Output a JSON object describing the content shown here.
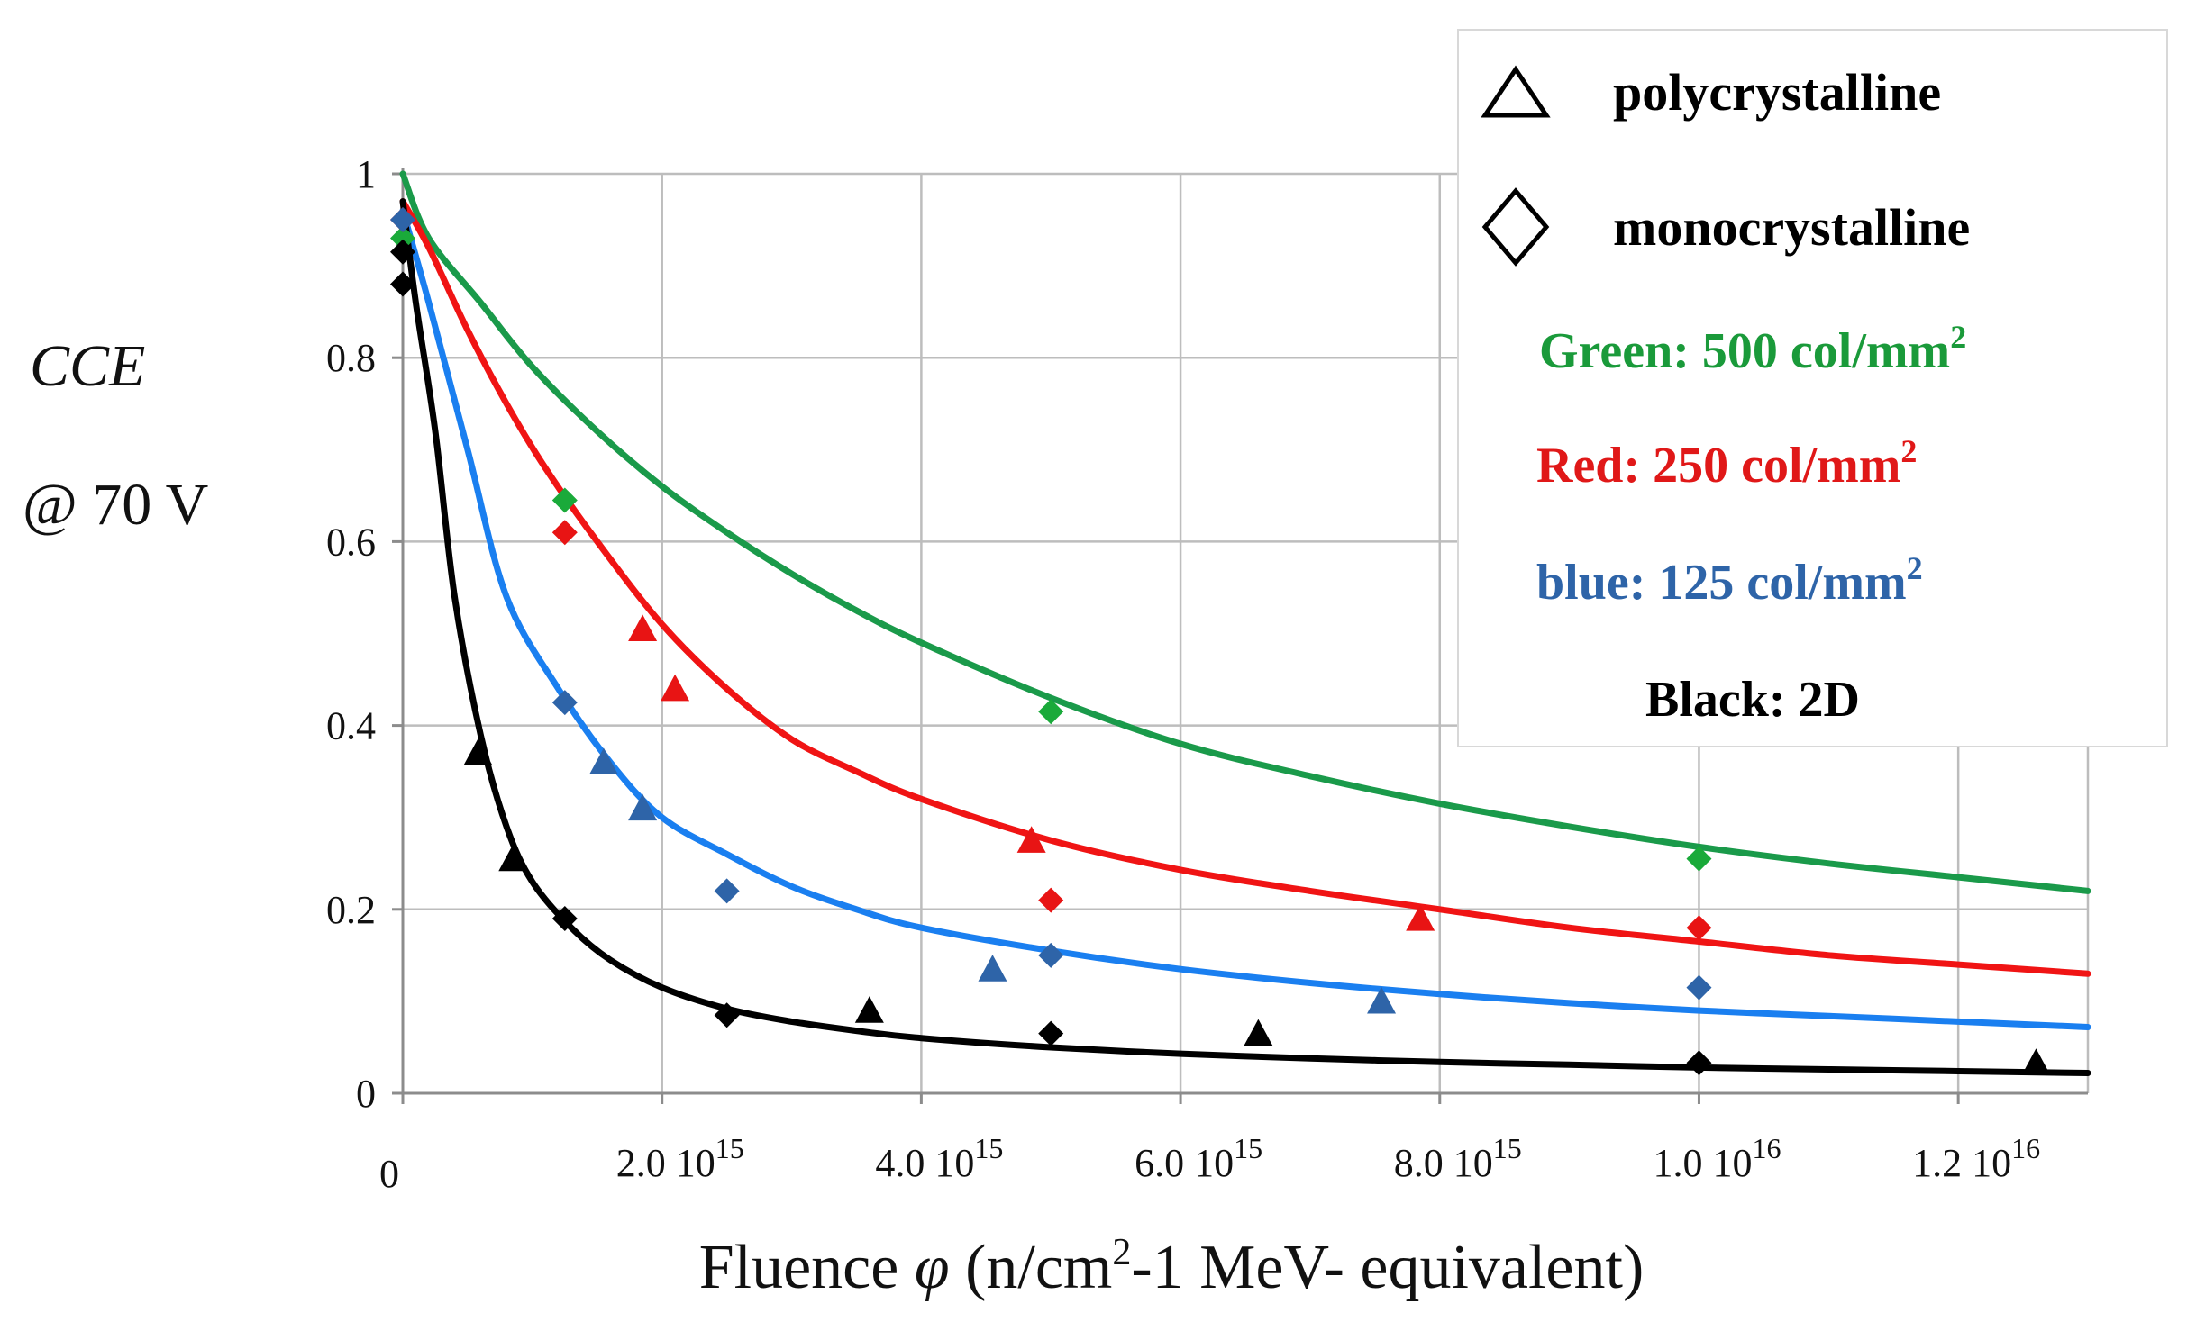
{
  "chart_data": {
    "type": "scatter",
    "xlabel_prefix": "Fluence ",
    "xlabel_symbol": "φ",
    "xlabel_suffix_parts": [
      "(n/cm",
      "2",
      "-1 MeV- equivalent)"
    ],
    "ylabel_main": "CCE",
    "ylabel_sub": "@ 70 V",
    "xlim": [
      0,
      1.3e+16
    ],
    "ylim": [
      0,
      1
    ],
    "grid": true,
    "x_ticks": [
      {
        "value": 0,
        "mantissa": "0",
        "exponent": ""
      },
      {
        "value": 2000000000000000.0,
        "mantissa": "2.0 10",
        "exponent": "15"
      },
      {
        "value": 4000000000000000.0,
        "mantissa": "4.0 10",
        "exponent": "15"
      },
      {
        "value": 6000000000000000.0,
        "mantissa": "6.0 10",
        "exponent": "15"
      },
      {
        "value": 8000000000000000.0,
        "mantissa": "8.0 10",
        "exponent": "15"
      },
      {
        "value": 1e+16,
        "mantissa": "1.0 10",
        "exponent": "16"
      },
      {
        "value": 1.2e+16,
        "mantissa": "1.2 10",
        "exponent": "16"
      }
    ],
    "y_ticks": [
      {
        "value": 0,
        "label": "0"
      },
      {
        "value": 0.2,
        "label": "0.2"
      },
      {
        "value": 0.4,
        "label": "0.4"
      },
      {
        "value": 0.6,
        "label": "0.6"
      },
      {
        "value": 0.8,
        "label": "0.8"
      },
      {
        "value": 1,
        "label": "1"
      }
    ],
    "legend": {
      "position": "top-right",
      "markers": [
        {
          "symbol": "triangle",
          "label": "polycrystalline"
        },
        {
          "symbol": "diamond",
          "label": "monocrystalline"
        }
      ],
      "color_notes": [
        {
          "text": "Green: 500 col/mm",
          "sup": "2",
          "color": "#1a9a3a"
        },
        {
          "text": "Red: 250 col/mm",
          "sup": "2",
          "color": "#e01818"
        },
        {
          "text": "blue: 125 col/mm",
          "sup": "2",
          "color": "#2e64a8"
        },
        {
          "text": "Black: 2D",
          "sup": "",
          "color": "#000000"
        }
      ]
    },
    "series": [
      {
        "name": "Green: 500 col/mm2",
        "line_color": "#1a9a4a",
        "marker_color": "#1aaa3a",
        "curve": [
          [
            0,
            1
          ],
          [
            200000000000000.0,
            0.93
          ],
          [
            600000000000000.0,
            0.86
          ],
          [
            1000000000000000.0,
            0.79
          ],
          [
            1500000000000000.0,
            0.72
          ],
          [
            2000000000000000.0,
            0.66
          ],
          [
            2500000000000000.0,
            0.61
          ],
          [
            3000000000000000.0,
            0.565
          ],
          [
            3500000000000000.0,
            0.525
          ],
          [
            4000000000000000.0,
            0.49
          ],
          [
            5000000000000000.0,
            0.43
          ],
          [
            6000000000000000.0,
            0.38
          ],
          [
            7000000000000000.0,
            0.345
          ],
          [
            8000000000000000.0,
            0.315
          ],
          [
            9000000000000000.0,
            0.29
          ],
          [
            1e+16,
            0.268
          ],
          [
            1.1e+16,
            0.25
          ],
          [
            1.2e+16,
            0.235
          ],
          [
            1.3e+16,
            0.22
          ]
        ],
        "monocrystalline": [
          [
            0,
            0.93
          ],
          [
            1250000000000000.0,
            0.645
          ],
          [
            5000000000000000.0,
            0.415
          ],
          [
            1e+16,
            0.255
          ]
        ],
        "polycrystalline": []
      },
      {
        "name": "Red: 250 col/mm2",
        "line_color": "#f01414",
        "marker_color": "#e81414",
        "curve": [
          [
            0,
            0.97
          ],
          [
            200000000000000.0,
            0.92
          ],
          [
            500000000000000.0,
            0.83
          ],
          [
            800000000000000.0,
            0.75
          ],
          [
            1100000000000000.0,
            0.68
          ],
          [
            1500000000000000.0,
            0.6
          ],
          [
            2000000000000000.0,
            0.51
          ],
          [
            2500000000000000.0,
            0.44
          ],
          [
            3000000000000000.0,
            0.385
          ],
          [
            3500000000000000.0,
            0.35
          ],
          [
            4000000000000000.0,
            0.32
          ],
          [
            5000000000000000.0,
            0.275
          ],
          [
            6000000000000000.0,
            0.243
          ],
          [
            7000000000000000.0,
            0.22
          ],
          [
            8000000000000000.0,
            0.2
          ],
          [
            9000000000000000.0,
            0.18
          ],
          [
            1e+16,
            0.165
          ],
          [
            1.1e+16,
            0.15
          ],
          [
            1.2e+16,
            0.14
          ],
          [
            1.3e+16,
            0.13
          ]
        ],
        "monocrystalline": [
          [
            0,
            0.95
          ],
          [
            1250000000000000.0,
            0.61
          ],
          [
            5000000000000000.0,
            0.21
          ],
          [
            1e+16,
            0.18
          ]
        ],
        "polycrystalline": [
          [
            1850000000000000.0,
            0.505
          ],
          [
            2100000000000000.0,
            0.44
          ],
          [
            4850000000000000.0,
            0.275
          ],
          [
            7850000000000000.0,
            0.19
          ]
        ]
      },
      {
        "name": "blue: 125 col/mm2",
        "line_color": "#1a7ff0",
        "marker_color": "#2e64a8",
        "curve": [
          [
            0,
            0.96
          ],
          [
            200000000000000.0,
            0.86
          ],
          [
            500000000000000.0,
            0.7
          ],
          [
            800000000000000.0,
            0.54
          ],
          [
            1200000000000000.0,
            0.44
          ],
          [
            1600000000000000.0,
            0.36
          ],
          [
            2000000000000000.0,
            0.3
          ],
          [
            2500000000000000.0,
            0.26
          ],
          [
            3000000000000000.0,
            0.225
          ],
          [
            3500000000000000.0,
            0.2
          ],
          [
            4000000000000000.0,
            0.18
          ],
          [
            5000000000000000.0,
            0.155
          ],
          [
            6000000000000000.0,
            0.135
          ],
          [
            7000000000000000.0,
            0.12
          ],
          [
            8000000000000000.0,
            0.108
          ],
          [
            9000000000000000.0,
            0.098
          ],
          [
            1e+16,
            0.09
          ],
          [
            1.1e+16,
            0.084
          ],
          [
            1.2e+16,
            0.078
          ],
          [
            1.3e+16,
            0.072
          ]
        ],
        "monocrystalline": [
          [
            0,
            0.95
          ],
          [
            1250000000000000.0,
            0.425
          ],
          [
            2500000000000000.0,
            0.22
          ],
          [
            5000000000000000.0,
            0.15
          ],
          [
            1e+16,
            0.115
          ]
        ],
        "polycrystalline": [
          [
            1550000000000000.0,
            0.36
          ],
          [
            1850000000000000.0,
            0.31
          ],
          [
            4550000000000000.0,
            0.135
          ],
          [
            7550000000000000.0,
            0.1
          ]
        ]
      },
      {
        "name": "Black: 2D",
        "line_color": "#000000",
        "marker_color": "#000000",
        "curve": [
          [
            0,
            0.97
          ],
          [
            100000000000000.0,
            0.86
          ],
          [
            250000000000000.0,
            0.72
          ],
          [
            400000000000000.0,
            0.54
          ],
          [
            600000000000000.0,
            0.39
          ],
          [
            800000000000000.0,
            0.29
          ],
          [
            1000000000000000.0,
            0.23
          ],
          [
            1300000000000000.0,
            0.18
          ],
          [
            1600000000000000.0,
            0.145
          ],
          [
            2000000000000000.0,
            0.115
          ],
          [
            2500000000000000.0,
            0.092
          ],
          [
            3000000000000000.0,
            0.078
          ],
          [
            3500000000000000.0,
            0.068
          ],
          [
            4000000000000000.0,
            0.06
          ],
          [
            5000000000000000.0,
            0.05
          ],
          [
            6000000000000000.0,
            0.043
          ],
          [
            7000000000000000.0,
            0.038
          ],
          [
            8000000000000000.0,
            0.034
          ],
          [
            9000000000000000.0,
            0.031
          ],
          [
            1e+16,
            0.028
          ],
          [
            1.1e+16,
            0.026
          ],
          [
            1.2e+16,
            0.024
          ],
          [
            1.3e+16,
            0.022
          ]
        ],
        "monocrystalline": [
          [
            0,
            0.915
          ],
          [
            0,
            0.88
          ],
          [
            1250000000000000.0,
            0.19
          ],
          [
            2500000000000000.0,
            0.085
          ],
          [
            5000000000000000.0,
            0.065
          ],
          [
            1e+16,
            0.033
          ]
        ],
        "polycrystalline": [
          [
            580000000000000.0,
            0.37
          ],
          [
            850000000000000.0,
            0.255
          ],
          [
            3600000000000000.0,
            0.09
          ],
          [
            6600000000000000.0,
            0.065
          ],
          [
            1.26e+16,
            0.033
          ]
        ]
      }
    ]
  }
}
